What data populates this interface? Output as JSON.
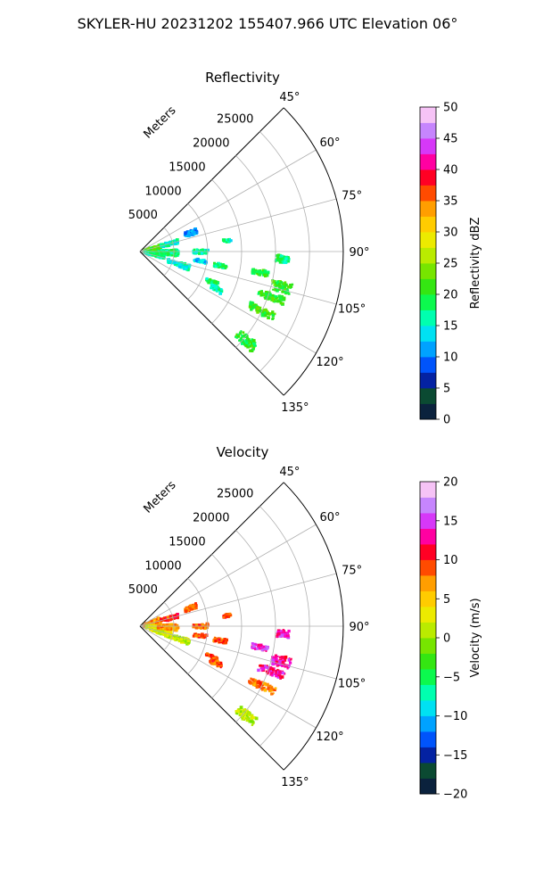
{
  "suptitle": "SKYLER-HU  20231202  155407.966 UTC Elevation 06°",
  "chart_data": [
    {
      "type": "heatmap",
      "projection": "polar-sector",
      "title": "Reflectivity",
      "radial_axis_label": "Meters",
      "radial_ticks": [
        "5000",
        "10000",
        "15000",
        "20000",
        "25000"
      ],
      "radial_tick_values": [
        5000,
        10000,
        15000,
        20000,
        25000
      ],
      "radial_max": 30000,
      "angle_range_deg": [
        45,
        135
      ],
      "angle_ticks": [
        "45°",
        "60°",
        "75°",
        "90°",
        "105°",
        "120°",
        "135°"
      ],
      "angle_tick_values": [
        45,
        60,
        75,
        90,
        105,
        120,
        135
      ],
      "grid": true,
      "colorbar": {
        "label": "Reflectivity dBZ",
        "range": [
          0,
          50
        ],
        "ticks": [
          "0",
          "5",
          "10",
          "15",
          "20",
          "25",
          "30",
          "35",
          "40",
          "45",
          "50"
        ],
        "tick_values": [
          0,
          5,
          10,
          15,
          20,
          25,
          30,
          35,
          40,
          45,
          50
        ]
      },
      "echo_regions": [
        {
          "az": 85,
          "r": 1800,
          "dr": 2600,
          "daz": 28,
          "v": 22
        },
        {
          "az": 100,
          "r": 2200,
          "dr": 3000,
          "daz": 14,
          "v": 17
        },
        {
          "az": 75,
          "r": 4500,
          "dr": 2600,
          "daz": 6,
          "v": 15
        },
        {
          "az": 92,
          "r": 4200,
          "dr": 3000,
          "daz": 10,
          "v": 18
        },
        {
          "az": 108,
          "r": 6000,
          "dr": 3400,
          "daz": 6,
          "v": 15
        },
        {
          "az": 70,
          "r": 8000,
          "dr": 1800,
          "daz": 5,
          "v": 11
        },
        {
          "az": 90,
          "r": 9000,
          "dr": 2200,
          "daz": 4,
          "v": 16
        },
        {
          "az": 99,
          "r": 9000,
          "dr": 2000,
          "daz": 3,
          "v": 13
        },
        {
          "az": 100,
          "r": 12000,
          "dr": 2000,
          "daz": 3,
          "v": 18
        },
        {
          "az": 113,
          "r": 11500,
          "dr": 1800,
          "daz": 2.5,
          "v": 18
        },
        {
          "az": 116,
          "r": 12500,
          "dr": 1800,
          "daz": 3,
          "v": 16
        },
        {
          "az": 83,
          "r": 13000,
          "dr": 1200,
          "daz": 2,
          "v": 16
        },
        {
          "az": 100,
          "r": 18000,
          "dr": 2400,
          "daz": 2.5,
          "v": 20
        },
        {
          "az": 104,
          "r": 21500,
          "dr": 3000,
          "daz": 4,
          "v": 21
        },
        {
          "az": 109,
          "r": 20500,
          "dr": 4000,
          "daz": 3,
          "v": 21
        },
        {
          "az": 116,
          "r": 20000,
          "dr": 4200,
          "daz": 3,
          "v": 21
        },
        {
          "az": 93,
          "r": 21000,
          "dr": 2000,
          "daz": 3,
          "v": 18
        },
        {
          "az": 130,
          "r": 20500,
          "dr": 3200,
          "daz": 4,
          "v": 20
        }
      ]
    },
    {
      "type": "heatmap",
      "projection": "polar-sector",
      "title": "Velocity",
      "radial_axis_label": "Meters",
      "radial_ticks": [
        "5000",
        "10000",
        "15000",
        "20000",
        "25000"
      ],
      "radial_tick_values": [
        5000,
        10000,
        15000,
        20000,
        25000
      ],
      "radial_max": 30000,
      "angle_range_deg": [
        45,
        135
      ],
      "angle_ticks": [
        "45°",
        "60°",
        "75°",
        "90°",
        "105°",
        "120°",
        "135°"
      ],
      "angle_tick_values": [
        45,
        60,
        75,
        90,
        105,
        120,
        135
      ],
      "grid": true,
      "colorbar": {
        "label": "Velocity (m/s)",
        "range": [
          -20,
          20
        ],
        "ticks": [
          "−20",
          "−15",
          "−10",
          "−5",
          "0",
          "5",
          "10",
          "15",
          "20"
        ],
        "tick_values": [
          -20,
          -15,
          -10,
          -5,
          0,
          5,
          10,
          15,
          20
        ]
      },
      "echo_regions": [
        {
          "az": 80,
          "r": 1800,
          "dr": 2600,
          "daz": 28,
          "v": 7
        },
        {
          "az": 95,
          "r": 2200,
          "dr": 2600,
          "daz": 14,
          "v": 3
        },
        {
          "az": 105,
          "r": 3200,
          "dr": 3200,
          "daz": 12,
          "v": 2
        },
        {
          "az": 75,
          "r": 4500,
          "dr": 2600,
          "daz": 6,
          "v": 10
        },
        {
          "az": 92,
          "r": 4200,
          "dr": 3000,
          "daz": 10,
          "v": 7
        },
        {
          "az": 108,
          "r": 6000,
          "dr": 3400,
          "daz": 6,
          "v": 1
        },
        {
          "az": 70,
          "r": 8000,
          "dr": 1800,
          "daz": 5,
          "v": 9
        },
        {
          "az": 90,
          "r": 9000,
          "dr": 2200,
          "daz": 4,
          "v": 9
        },
        {
          "az": 99,
          "r": 9000,
          "dr": 2000,
          "daz": 3,
          "v": 9
        },
        {
          "az": 100,
          "r": 12000,
          "dr": 2000,
          "daz": 3,
          "v": 9
        },
        {
          "az": 113,
          "r": 11500,
          "dr": 1800,
          "daz": 2.5,
          "v": 9
        },
        {
          "az": 116,
          "r": 12500,
          "dr": 1800,
          "daz": 3,
          "v": 9
        },
        {
          "az": 83,
          "r": 13000,
          "dr": 1200,
          "daz": 2,
          "v": 9
        },
        {
          "az": 100,
          "r": 18000,
          "dr": 2400,
          "daz": 2.5,
          "v": 14
        },
        {
          "az": 104,
          "r": 21500,
          "dr": 3000,
          "daz": 4,
          "v": 13
        },
        {
          "az": 109,
          "r": 20500,
          "dr": 4000,
          "daz": 3,
          "v": 13
        },
        {
          "az": 116,
          "r": 20000,
          "dr": 4200,
          "daz": 3,
          "v": 8
        },
        {
          "az": 93,
          "r": 21000,
          "dr": 2000,
          "daz": 3,
          "v": 14
        },
        {
          "az": 130,
          "r": 20500,
          "dr": 3200,
          "daz": 4,
          "v": 1
        }
      ]
    }
  ]
}
